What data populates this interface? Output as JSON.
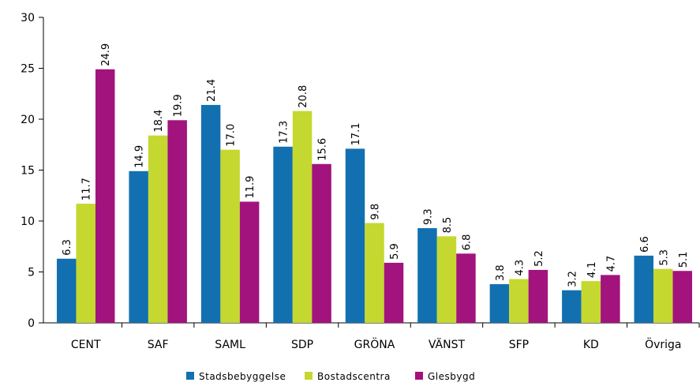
{
  "chart_data": {
    "type": "bar",
    "categories": [
      "CENT",
      "SAF",
      "SAML",
      "SDP",
      "GRÖNA",
      "VÄNST",
      "SFP",
      "KD",
      "Övriga"
    ],
    "series": [
      {
        "name": "Stadsbebyggelse",
        "color": "#1270b0",
        "values": [
          6.3,
          14.9,
          21.4,
          17.3,
          17.1,
          9.3,
          3.8,
          3.2,
          6.6
        ],
        "value_labels": [
          "6.3",
          "14.9",
          "21.4",
          "17.3",
          "17.1",
          "9.3",
          "3.8",
          "3.2",
          "6.6"
        ]
      },
      {
        "name": "Bostadscentra",
        "color": "#c5d82f",
        "values": [
          11.7,
          18.4,
          17.0,
          20.8,
          9.8,
          8.5,
          4.3,
          4.1,
          5.3
        ],
        "value_labels": [
          "11.7",
          "18.4",
          "17.0",
          "20.8",
          "9.8",
          "8.5",
          "4.3",
          "4.1",
          "5.3"
        ]
      },
      {
        "name": "Glesbygd",
        "color": "#a2137d",
        "values": [
          24.9,
          19.9,
          11.9,
          15.6,
          5.9,
          6.8,
          5.2,
          4.7,
          5.1
        ],
        "value_labels": [
          "24.9",
          "19.9",
          "11.9",
          "15.6",
          "5.9",
          "6.8",
          "5.2",
          "4.7",
          "5.1"
        ]
      }
    ],
    "ylim": [
      0,
      30
    ],
    "yticks": [
      0,
      5,
      10,
      15,
      20,
      25,
      30
    ],
    "grid": false,
    "legend": "bottom"
  }
}
